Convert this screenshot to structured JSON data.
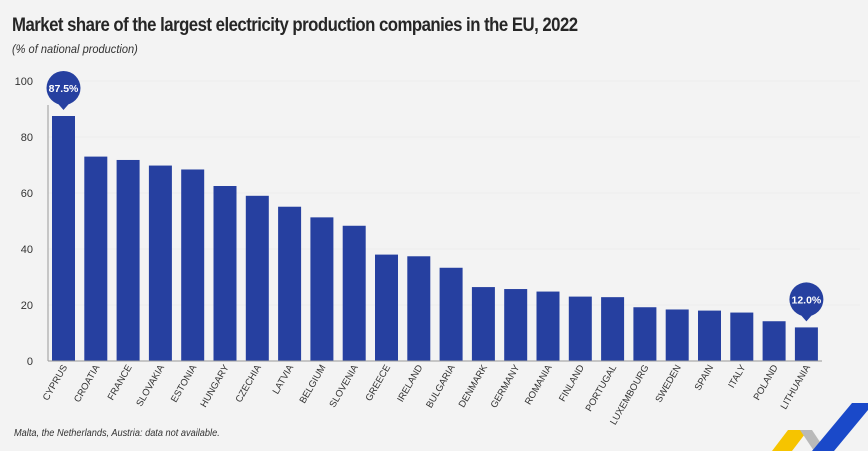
{
  "chart_data": {
    "type": "bar",
    "title": "Market share of the largest electricity production companies in the EU, 2022",
    "subtitle": "(% of national production)",
    "xlabel": "",
    "ylabel": "",
    "ylim": [
      0,
      100
    ],
    "yticks": [
      0,
      20,
      40,
      60,
      80,
      100
    ],
    "grid": true,
    "categories": [
      "CYPRUS",
      "CROATIA",
      "FRANCE",
      "SLOVAKIA",
      "ESTONIA",
      "HUNGARY",
      "CZECHIA",
      "LATVIA",
      "BELGIUM",
      "SLOVENIA",
      "GREECE",
      "IRELAND",
      "BULGARIA",
      "DENMARK",
      "GERMANY",
      "ROMANIA",
      "FINLAND",
      "PORTUGAL",
      "LUXEMBOURG",
      "SWEDEN",
      "SPAIN",
      "ITALY",
      "POLAND",
      "LITHUANIA"
    ],
    "values": [
      87.5,
      73.0,
      71.8,
      69.8,
      68.4,
      62.5,
      59.0,
      55.1,
      51.3,
      48.3,
      38.0,
      37.4,
      33.3,
      26.4,
      25.7,
      24.8,
      23.0,
      22.8,
      19.2,
      18.4,
      18.0,
      17.3,
      14.2,
      12.0
    ],
    "annotations": [
      {
        "category": "CYPRUS",
        "label": "87.5%"
      },
      {
        "category": "LITHUANIA",
        "label": "12.0%"
      }
    ],
    "footnote": "Malta, the Netherlands, Austria: data not available.",
    "colors": {
      "bar": "#2640a0",
      "callout": "#2640a0",
      "background": "#f3f3f3"
    }
  }
}
